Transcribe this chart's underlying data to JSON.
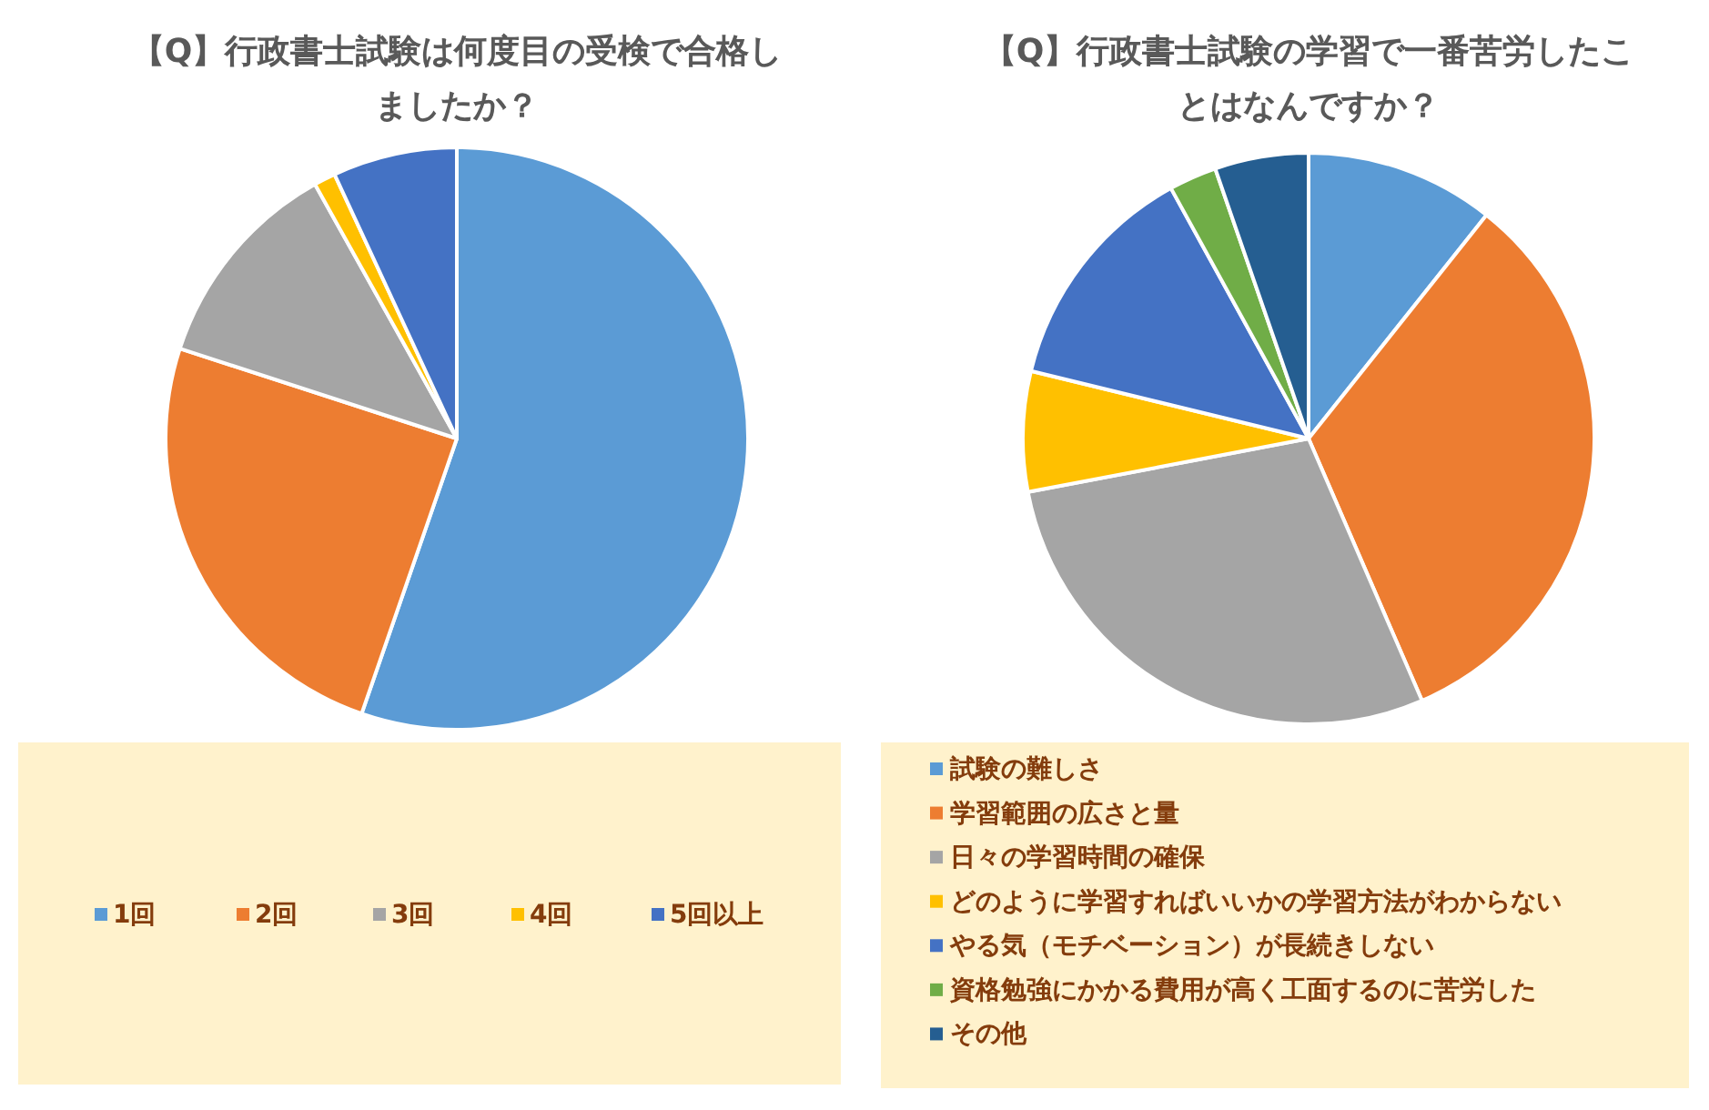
{
  "chart_data": [
    {
      "type": "pie",
      "title": "【Q】行政書士試験は何度目の受検で合格しましたか？",
      "categories": [
        "1回",
        "2回",
        "3回",
        "4回",
        "5回以上"
      ],
      "values": [
        55.3,
        24.7,
        11.9,
        1.2,
        6.9
      ],
      "colors": [
        "#5b9bd5",
        "#ed7d31",
        "#a5a5a5",
        "#ffc000",
        "#4472c4"
      ],
      "legend": "bottom"
    },
    {
      "type": "pie",
      "title": "【Q】行政書士試験の学習で一番苦労したことはなんですか？",
      "categories": [
        "試験の難しさ",
        "学習範囲の広さと量",
        "日々の学習時間の確保",
        "どのように学習すればいいかの学習方法がわからない",
        "やる気（モチベーション）が長続きしない",
        "資格勉強にかかる費用が高く工面するのに苦労した",
        "その他"
      ],
      "values": [
        10.7,
        32.8,
        28.5,
        6.8,
        13.2,
        2.7,
        5.3
      ],
      "colors": [
        "#5b9bd5",
        "#ed7d31",
        "#a5a5a5",
        "#ffc000",
        "#4472c4",
        "#70ad47",
        "#255e91"
      ],
      "legend": "bottom"
    }
  ]
}
